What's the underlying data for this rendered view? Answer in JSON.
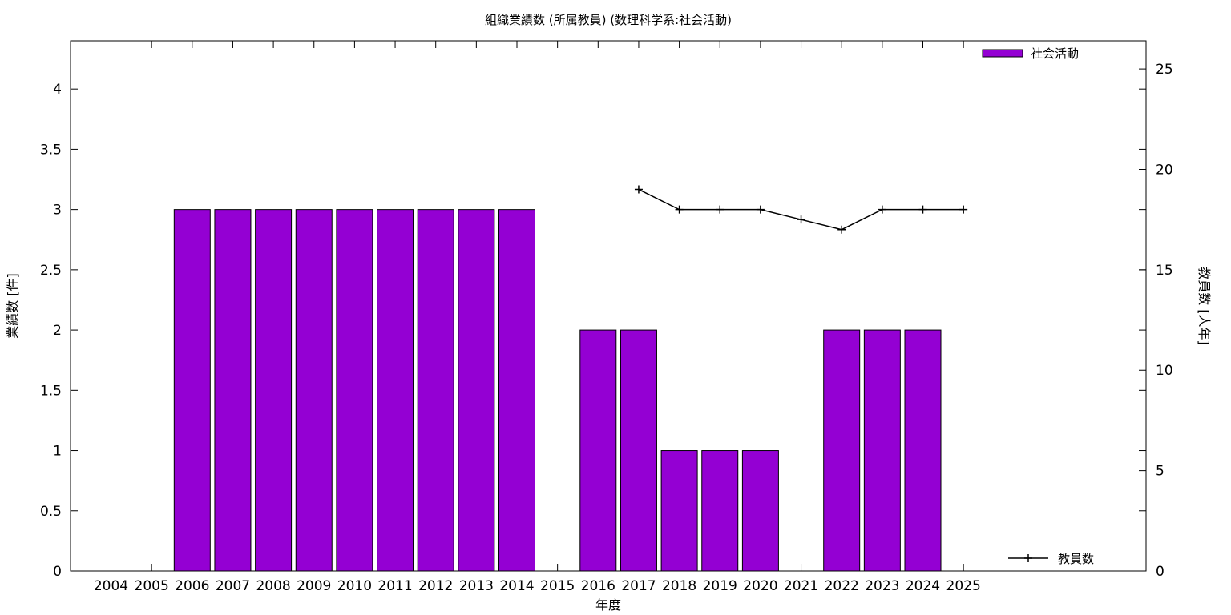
{
  "chart_data": {
    "type": "bar",
    "title": "組織業績数 (所属教員) (数理科学系:社会活動)",
    "xlabel": "年度",
    "ylabel": "業績数 [件]",
    "y2label": "教員数 [人年]",
    "categories": [
      "2004",
      "2005",
      "2006",
      "2007",
      "2008",
      "2009",
      "2010",
      "2011",
      "2012",
      "2013",
      "2014",
      "2015",
      "2016",
      "2017",
      "2018",
      "2019",
      "2020",
      "2021",
      "2022",
      "2023",
      "2024",
      "2025"
    ],
    "series": [
      {
        "name": "社会活動",
        "type": "bar",
        "axis": "left",
        "color": "#9400d3",
        "values": [
          0,
          0,
          3,
          3,
          3,
          3,
          3,
          3,
          3,
          3,
          3,
          0,
          2,
          2,
          1,
          1,
          1,
          0,
          2,
          2,
          2,
          0
        ]
      },
      {
        "name": "教員数",
        "type": "line",
        "axis": "right",
        "color": "#000000",
        "values": [
          null,
          null,
          null,
          null,
          null,
          null,
          null,
          null,
          null,
          null,
          null,
          null,
          null,
          19,
          18,
          18,
          18,
          17.5,
          17,
          18,
          18,
          18
        ]
      }
    ],
    "ylim": [
      0,
      4.4
    ],
    "yticks": [
      "0",
      "0.5",
      "1",
      "1.5",
      "2",
      "2.5",
      "3",
      "3.5",
      "4"
    ],
    "y2lim": [
      0,
      26.4
    ],
    "y2ticks": [
      "0",
      "5",
      "10",
      "15",
      "20",
      "25"
    ],
    "legend": [
      "top-right",
      "bottom-right"
    ],
    "grid": false
  }
}
